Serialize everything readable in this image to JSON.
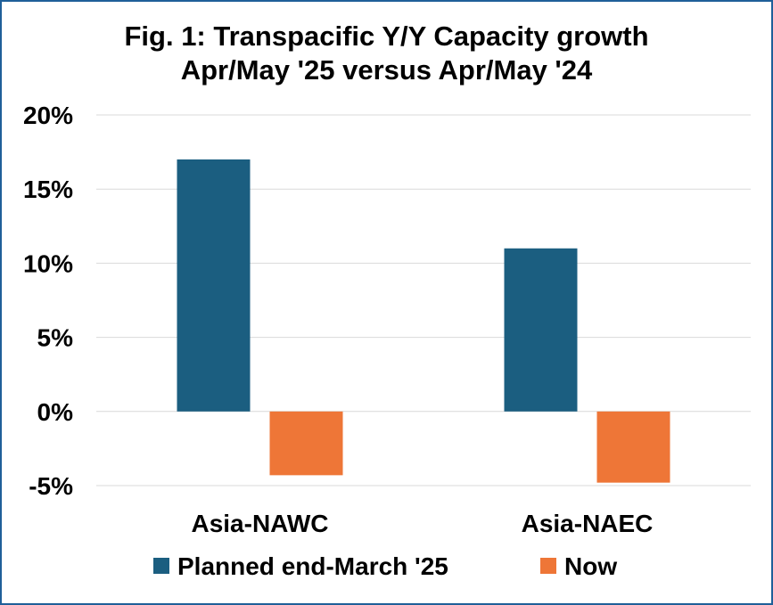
{
  "chart_data": {
    "type": "bar",
    "title": "Fig. 1: Transpacific Y/Y Capacity growth",
    "subtitle": "Apr/May '25 versus Apr/May '24",
    "categories": [
      "Asia-NAWC",
      "Asia-NAEC"
    ],
    "series": [
      {
        "name": "Planned end-March '25",
        "values": [
          17.0,
          11.0
        ],
        "color": "#1b5e80"
      },
      {
        "name": "Now",
        "values": [
          -4.3,
          -4.8
        ],
        "color": "#ee7637"
      }
    ],
    "ylim": [
      -5,
      20
    ],
    "yticks": [
      20,
      15,
      10,
      5,
      0,
      -5
    ],
    "ytick_labels": [
      "20%",
      "15%",
      "10%",
      "5%",
      "0%",
      "-5%"
    ],
    "grid": true,
    "legend_position": "bottom"
  }
}
